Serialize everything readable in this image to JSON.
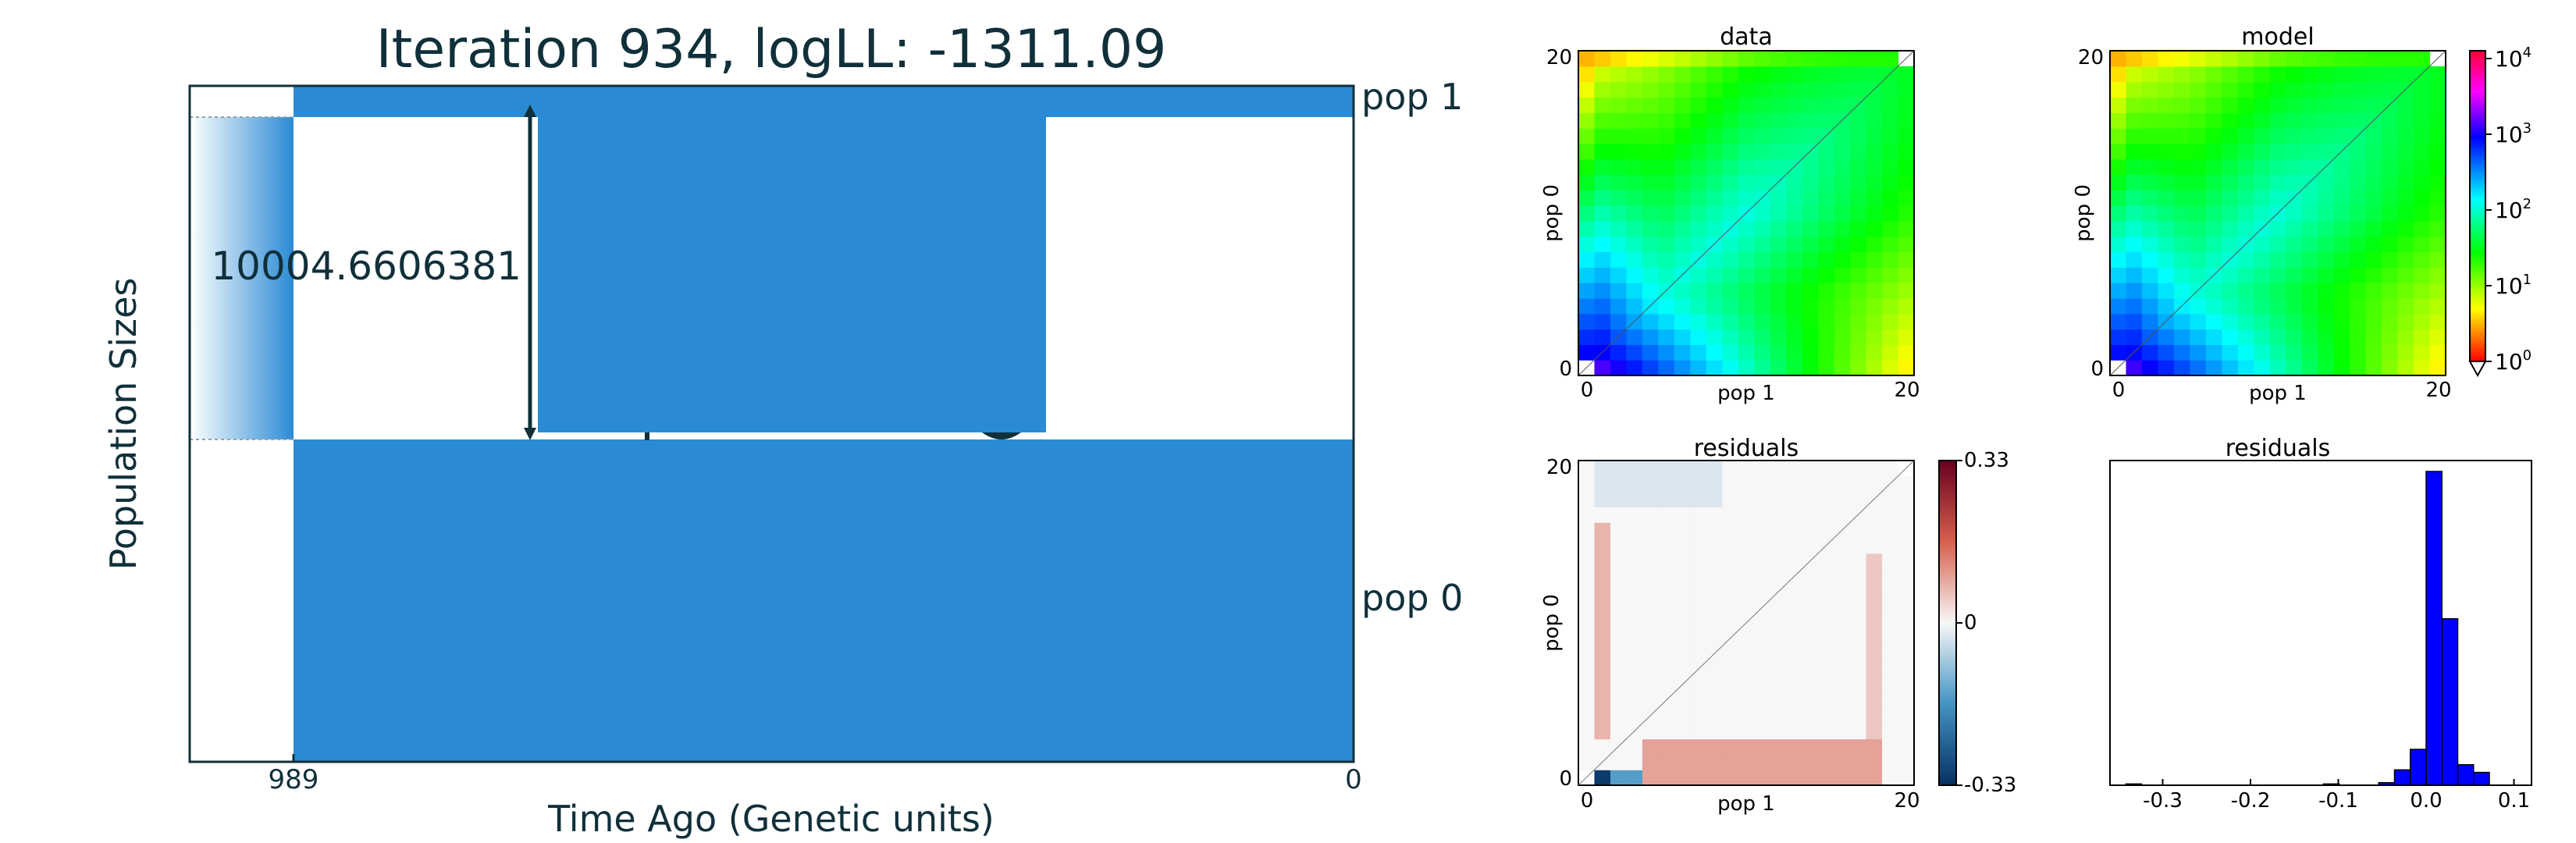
{
  "main_plot": {
    "title": "Iteration 934, logLL:   -1311.09",
    "xlabel": "Time Ago (Genetic units)",
    "ylabel": "Population Sizes",
    "x_ticks": [
      "989",
      "0"
    ],
    "labels": {
      "pop1": "pop 1",
      "pop0": "pop 0"
    },
    "annotation": "10004.6606381",
    "color": "#2a8bd4"
  },
  "chart_data": [
    {
      "type": "heatmap",
      "title": "data",
      "xlabel": "pop 1",
      "ylabel": "pop 0",
      "x_ticks": [
        "0",
        "20"
      ],
      "y_ticks": [
        "0",
        "20"
      ],
      "grid_size": 21
    },
    {
      "type": "heatmap",
      "title": "model",
      "xlabel": "pop 1",
      "ylabel": "pop 0",
      "x_ticks": [
        "0",
        "20"
      ],
      "y_ticks": [
        "0",
        "20"
      ],
      "grid_size": 21,
      "colorbar": {
        "scale": "log",
        "ticks": [
          "10",
          "10",
          "10",
          "10",
          "10"
        ],
        "exponents": [
          "0",
          "1",
          "2",
          "3",
          "4"
        ]
      }
    },
    {
      "type": "heatmap",
      "title": "residuals",
      "xlabel": "pop 1",
      "ylabel": "pop 0",
      "x_ticks": [
        "0",
        "20"
      ],
      "y_ticks": [
        "0",
        "20"
      ],
      "grid_size": 21,
      "colorbar": {
        "ticks": [
          "0.33",
          "0",
          "-0.33"
        ],
        "range": [
          -0.33,
          0.33
        ]
      }
    },
    {
      "type": "bar",
      "title": "residuals",
      "x_ticks": [
        "-0.3",
        "-0.2",
        "-0.1",
        "0.0",
        "0.1"
      ],
      "xlim": [
        -0.36,
        0.12
      ],
      "bin_width": 0.018,
      "bins": [
        {
          "x": -0.333,
          "count": 1
        },
        {
          "x": -0.108,
          "count": 1
        },
        {
          "x": -0.045,
          "count": 2
        },
        {
          "x": -0.027,
          "count": 12
        },
        {
          "x": -0.009,
          "count": 28
        },
        {
          "x": 0.009,
          "count": 245
        },
        {
          "x": 0.027,
          "count": 130
        },
        {
          "x": 0.045,
          "count": 16
        },
        {
          "x": 0.063,
          "count": 10
        }
      ],
      "color": "#0000ff"
    }
  ]
}
